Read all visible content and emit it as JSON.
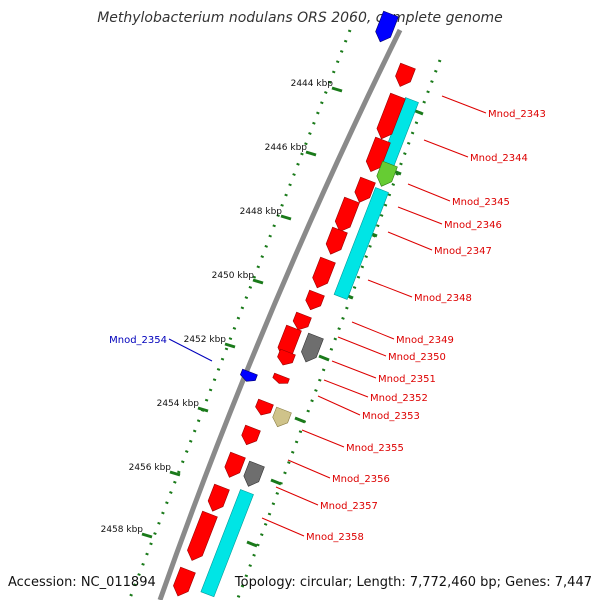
{
  "title": "Methylobacterium nodulans ORS 2060, complete genome",
  "footer": {
    "accession": "Accession: NC_011894",
    "summary": "Topology: circular; Length: 7,772,460 bp; Genes: 7,447"
  },
  "colors": {
    "forward_gene": "#ff0000",
    "reverse_gene": "#0000ff",
    "cds_band": "#00e5e5",
    "gray_feature": "#6e6e6e",
    "khaki_feature": "#cfc38a",
    "green_feature": "#66cc33",
    "tick_green": "#1a7a1a",
    "backbone": "#8a8a8a",
    "forward_label": "#dd0000",
    "reverse_label": "#0000bb"
  },
  "kbp_ticks": [
    "2444 kbp",
    "2446 kbp",
    "2448 kbp",
    "2450 kbp",
    "2452 kbp",
    "2454 kbp",
    "2456 kbp",
    "2458 kbp"
  ],
  "gene_labels": [
    {
      "text": "Mnod_2343",
      "strand": "forward"
    },
    {
      "text": "Mnod_2344",
      "strand": "forward"
    },
    {
      "text": "Mnod_2345",
      "strand": "forward"
    },
    {
      "text": "Mnod_2346",
      "strand": "forward"
    },
    {
      "text": "Mnod_2347",
      "strand": "forward"
    },
    {
      "text": "Mnod_2348",
      "strand": "forward"
    },
    {
      "text": "Mnod_2349",
      "strand": "forward"
    },
    {
      "text": "Mnod_2350",
      "strand": "forward"
    },
    {
      "text": "Mnod_2351",
      "strand": "forward"
    },
    {
      "text": "Mnod_2352",
      "strand": "forward"
    },
    {
      "text": "Mnod_2353",
      "strand": "forward"
    },
    {
      "text": "Mnod_2354",
      "strand": "reverse"
    },
    {
      "text": "Mnod_2355",
      "strand": "forward"
    },
    {
      "text": "Mnod_2356",
      "strand": "forward"
    },
    {
      "text": "Mnod_2357",
      "strand": "forward"
    },
    {
      "text": "Mnod_2358",
      "strand": "forward"
    }
  ]
}
